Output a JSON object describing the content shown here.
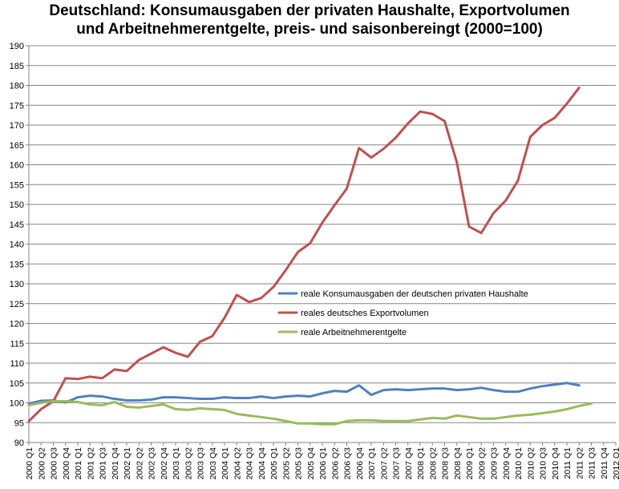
{
  "chart_data": {
    "type": "line",
    "title_line1": "Deutschland: Konsumausgaben der privaten Haushalte, Exportvolumen",
    "title_line2": "und Arbeitnehmerentgelte, preis- und saisonbereingt (2000=100)",
    "xlabel": "",
    "ylabel": "",
    "ylim": [
      90,
      190
    ],
    "yticks": [
      90,
      95,
      100,
      105,
      110,
      115,
      120,
      125,
      130,
      135,
      140,
      145,
      150,
      155,
      160,
      165,
      170,
      175,
      180,
      185,
      190
    ],
    "grid": "horizontal",
    "legend_position": "center",
    "categories": [
      "2000 Q1",
      "2000 Q2",
      "2000 Q3",
      "2000 Q4",
      "2001 Q1",
      "2001 Q2",
      "2001 Q3",
      "2001 Q4",
      "2002 Q1",
      "2002 Q2",
      "2002 Q3",
      "2002 Q4",
      "2003 Q1",
      "2003 Q2",
      "2003 Q3",
      "2003 Q4",
      "2004 Q1",
      "2004 Q2",
      "2004 Q3",
      "2004 Q4",
      "2005 Q1",
      "2005 Q2",
      "2005 Q3",
      "2005 Q4",
      "2006 Q1",
      "2006 Q2",
      "2006 Q3",
      "2006 Q4",
      "2007 Q1",
      "2007 Q2",
      "2007 Q3",
      "2007 Q4",
      "2008 Q1",
      "2008 Q2",
      "2008 Q3",
      "2008 Q4",
      "2009 Q1",
      "2009 Q2",
      "2009 Q3",
      "2009 Q4",
      "2010 Q1",
      "2010 Q2",
      "2010 Q3",
      "2010 Q4",
      "2011 Q1",
      "2011 Q2",
      "2011 Q3",
      "2011 Q4",
      "2012 Q1"
    ],
    "series": [
      {
        "name": "reale Konsumausgaben  der deutschen privaten Haushalte",
        "color": "#4f81bd",
        "values": [
          99.8,
          100.5,
          100.6,
          100.1,
          101.4,
          101.8,
          101.6,
          101.0,
          100.6,
          100.6,
          100.8,
          101.4,
          101.4,
          101.2,
          101.0,
          101.0,
          101.4,
          101.2,
          101.2,
          101.6,
          101.2,
          101.6,
          101.8,
          101.6,
          102.4,
          103.0,
          102.8,
          104.4,
          102.0,
          103.2,
          103.4,
          103.2,
          103.4,
          103.6,
          103.6,
          103.2,
          103.4,
          103.8,
          103.2,
          102.8,
          102.8,
          103.6,
          104.2,
          104.6,
          105.0,
          104.4,
          null,
          null,
          null
        ]
      },
      {
        "name": "reales deutsches Exportvolumen",
        "color": "#c0504d",
        "values": [
          95.4,
          98.4,
          100.4,
          106.2,
          106.0,
          106.6,
          106.2,
          108.4,
          108.0,
          110.8,
          112.4,
          114.0,
          112.6,
          111.6,
          115.4,
          116.8,
          121.4,
          127.2,
          125.4,
          126.4,
          129.2,
          133.4,
          138.0,
          140.2,
          145.4,
          149.8,
          154.0,
          164.2,
          161.8,
          164.0,
          166.8,
          170.4,
          173.4,
          172.8,
          171.0,
          160.6,
          144.4,
          142.8,
          147.8,
          151.0,
          156.0,
          167.0,
          170.0,
          171.8,
          175.4,
          179.4,
          null,
          null,
          null
        ]
      },
      {
        "name": "reale Arbeitnehmerentgelte",
        "color": "#9bbb59",
        "values": [
          99.4,
          100.0,
          100.4,
          100.4,
          100.2,
          99.6,
          99.4,
          100.2,
          99.0,
          98.8,
          99.2,
          99.6,
          98.4,
          98.2,
          98.6,
          98.4,
          98.2,
          97.2,
          96.8,
          96.4,
          96.0,
          95.4,
          94.8,
          94.8,
          94.6,
          94.6,
          95.4,
          95.6,
          95.6,
          95.4,
          95.4,
          95.4,
          95.8,
          96.2,
          96.0,
          96.8,
          96.4,
          96.0,
          96.0,
          96.4,
          96.8,
          97.0,
          97.4,
          97.8,
          98.4,
          99.2,
          99.8,
          null,
          null
        ]
      }
    ]
  }
}
